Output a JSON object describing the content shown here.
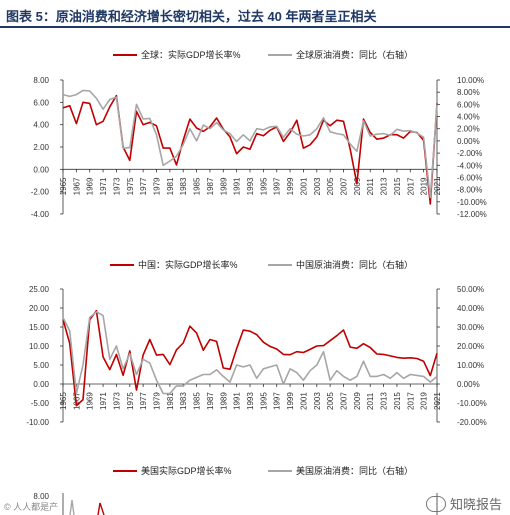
{
  "figure_title": "图表 5：原油消费和经济增长密切相关，过去 40 年两者呈正相关",
  "colors": {
    "gdp": "#c00000",
    "oil": "#a6a6a6",
    "title": "#1f3864"
  },
  "watermark": {
    "right": "知晓报告",
    "left": "© 人人都是产",
    "icon": "wechat-icon"
  },
  "chart_data": [
    {
      "type": "line",
      "region": "global",
      "legend": [
        "全球：实际GDP增长率%",
        "全球原油消费：同比（右轴）"
      ],
      "left_axis": {
        "ylim": [
          -4,
          8
        ],
        "ticks": [
          "-4.00",
          "-2.00",
          "0.00",
          "2.00",
          "4.00",
          "6.00",
          "8.00"
        ]
      },
      "right_axis": {
        "ylim": [
          -12,
          10
        ],
        "ticks": [
          "-12.00%",
          "-10.00%",
          "-8.00%",
          "-6.00%",
          "-4.00%",
          "-2.00%",
          "0.00%",
          "2.00%",
          "4.00%",
          "6.00%",
          "8.00%",
          "10.00%"
        ]
      },
      "x": [
        1965,
        1966,
        1967,
        1968,
        1969,
        1970,
        1971,
        1972,
        1973,
        1974,
        1975,
        1976,
        1977,
        1978,
        1979,
        1980,
        1981,
        1982,
        1983,
        1984,
        1985,
        1986,
        1987,
        1988,
        1989,
        1990,
        1991,
        1992,
        1993,
        1994,
        1995,
        1996,
        1997,
        1998,
        1999,
        2000,
        2001,
        2002,
        2003,
        2004,
        2005,
        2006,
        2007,
        2008,
        2009,
        2010,
        2011,
        2012,
        2013,
        2014,
        2015,
        2016,
        2017,
        2018,
        2019,
        2020,
        2021
      ],
      "x_tick_labels": [
        "1965",
        "1967",
        "1969",
        "1971",
        "1973",
        "1975",
        "1977",
        "1979",
        "1981",
        "1983",
        "1985",
        "1987",
        "1989",
        "1991",
        "1993",
        "1995",
        "1997",
        "1999",
        "2001",
        "2003",
        "2005",
        "2007",
        "2009",
        "2011",
        "2013",
        "2015",
        "2017",
        "2019",
        "2021"
      ],
      "series": [
        {
          "name": "全球：实际GDP增长率%",
          "axis": "left",
          "values": [
            5.5,
            5.7,
            4.1,
            6.0,
            5.9,
            4.0,
            4.3,
            5.6,
            6.6,
            2.0,
            0.8,
            5.2,
            4.0,
            4.2,
            3.9,
            1.9,
            1.9,
            0.4,
            2.6,
            4.5,
            3.7,
            3.4,
            3.8,
            4.6,
            3.6,
            2.9,
            1.4,
            2.0,
            1.8,
            3.2,
            3.0,
            3.5,
            3.8,
            2.5,
            3.3,
            4.4,
            1.9,
            2.2,
            2.9,
            4.4,
            3.9,
            4.4,
            4.3,
            1.8,
            -1.3,
            4.5,
            3.3,
            2.7,
            2.8,
            3.1,
            3.1,
            2.8,
            3.4,
            3.3,
            2.6,
            -3.1,
            5.9
          ]
        },
        {
          "name": "全球原油消费：同比（右轴）",
          "axis": "right",
          "values": [
            7.6,
            7.3,
            7.6,
            8.3,
            8.2,
            7.0,
            5.2,
            6.8,
            7.2,
            -1.2,
            -1.1,
            6.0,
            3.6,
            3.7,
            1.0,
            -4.0,
            -3.3,
            -2.5,
            -0.6,
            2.0,
            0.0,
            2.6,
            2.0,
            3.0,
            1.8,
            1.2,
            -0.1,
            1.0,
            0.0,
            2.0,
            1.8,
            2.3,
            2.4,
            0.6,
            2.0,
            1.1,
            0.8,
            1.0,
            2.0,
            3.8,
            1.5,
            1.2,
            1.0,
            -0.5,
            -1.7,
            3.3,
            0.8,
            1.1,
            1.2,
            0.9,
            1.9,
            1.6,
            1.7,
            1.3,
            0.6,
            -9.3,
            6.0
          ]
        }
      ]
    },
    {
      "type": "line",
      "region": "china",
      "legend": [
        "中国：实际GDP增长率%",
        "中国原油消费：同比（右轴）"
      ],
      "left_axis": {
        "ylim": [
          -10,
          25
        ],
        "ticks": [
          "-10.00",
          "-5.00",
          "0.00",
          "5.00",
          "10.00",
          "15.00",
          "20.00",
          "25.00"
        ]
      },
      "right_axis": {
        "ylim": [
          -20,
          50
        ],
        "ticks": [
          "-20.00%",
          "-10.00%",
          "0.00%",
          "10.00%",
          "20.00%",
          "30.00%",
          "40.00%",
          "50.00%"
        ]
      },
      "x": [
        1965,
        1966,
        1967,
        1968,
        1969,
        1970,
        1971,
        1972,
        1973,
        1974,
        1975,
        1976,
        1977,
        1978,
        1979,
        1980,
        1981,
        1982,
        1983,
        1984,
        1985,
        1986,
        1987,
        1988,
        1989,
        1990,
        1991,
        1992,
        1993,
        1994,
        1995,
        1996,
        1997,
        1998,
        1999,
        2000,
        2001,
        2002,
        2003,
        2004,
        2005,
        2006,
        2007,
        2008,
        2009,
        2010,
        2011,
        2012,
        2013,
        2014,
        2015,
        2016,
        2017,
        2018,
        2019,
        2020,
        2021
      ],
      "x_tick_labels": [
        "1965",
        "1967",
        "1969",
        "1971",
        "1973",
        "1975",
        "1977",
        "1979",
        "1981",
        "1983",
        "1985",
        "1987",
        "1989",
        "1991",
        "1993",
        "1995",
        "1997",
        "1999",
        "2001",
        "2003",
        "2005",
        "2007",
        "2009",
        "2011",
        "2013",
        "2015",
        "2017",
        "2019",
        "2021"
      ],
      "series": [
        {
          "name": "中国：实际GDP增长率%",
          "axis": "left",
          "values": [
            17.0,
            10.7,
            -5.7,
            -4.1,
            16.9,
            19.3,
            7.1,
            3.8,
            7.8,
            2.3,
            8.7,
            -1.6,
            7.6,
            11.7,
            7.6,
            7.8,
            5.1,
            9.0,
            10.8,
            15.2,
            13.4,
            8.9,
            11.7,
            11.2,
            4.2,
            3.9,
            9.3,
            14.2,
            13.9,
            13.0,
            11.0,
            9.9,
            9.2,
            7.8,
            7.7,
            8.5,
            8.3,
            9.1,
            10.0,
            10.1,
            11.4,
            12.7,
            14.2,
            9.7,
            9.4,
            10.6,
            9.6,
            7.9,
            7.8,
            7.4,
            7.0,
            6.8,
            6.9,
            6.7,
            6.0,
            2.2,
            8.1
          ]
        },
        {
          "name": "中国原油消费：同比（右轴）",
          "axis": "right",
          "values": [
            35.0,
            28.0,
            -5.0,
            10.0,
            35.0,
            38.0,
            36.0,
            13.0,
            20.0,
            8.0,
            16.0,
            5.0,
            13.0,
            11.0,
            2.0,
            -5.0,
            -5.0,
            -1.0,
            -1.0,
            2.0,
            3.5,
            5.0,
            5.0,
            7.5,
            4.0,
            1.0,
            10.0,
            9.0,
            10.0,
            3.0,
            8.0,
            9.0,
            10.0,
            0.0,
            8.0,
            6.0,
            2.0,
            7.0,
            10.0,
            17.0,
            2.0,
            7.0,
            4.0,
            2.0,
            4.0,
            12.0,
            4.0,
            4.0,
            5.0,
            3.0,
            6.0,
            3.0,
            5.0,
            4.5,
            4.0,
            1.0,
            4.0
          ]
        }
      ]
    },
    {
      "type": "line",
      "region": "usa",
      "legend": [
        "美国实际GDP增长率%",
        "美国原油消费：同比（右轴）"
      ],
      "left_axis": {
        "ticks": [
          "8.00"
        ]
      }
    }
  ]
}
